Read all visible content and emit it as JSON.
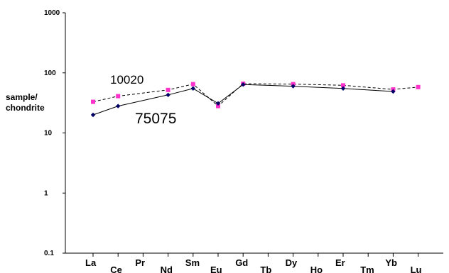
{
  "chart_data": {
    "type": "line",
    "yscale": "log",
    "ylim": [
      0.1,
      1000
    ],
    "yticks": [
      "1000",
      "100",
      "10",
      "1",
      "0.1"
    ],
    "ylabel_lines": [
      "sample/",
      "chondrite"
    ],
    "xlabel": "",
    "grid": false,
    "legend": "none",
    "categories": [
      "La",
      "Ce",
      "Pr",
      "Nd",
      "Sm",
      "Eu",
      "Gd",
      "Tb",
      "Dy",
      "Ho",
      "Er",
      "Tm",
      "Yb",
      "Lu"
    ],
    "series": [
      {
        "name": "10020",
        "style": "dashed",
        "marker": "square",
        "color": "#ff33cc",
        "points": [
          {
            "cat": "La",
            "value": 33
          },
          {
            "cat": "Ce",
            "value": 41
          },
          {
            "cat": "Nd",
            "value": 52
          },
          {
            "cat": "Sm",
            "value": 65
          },
          {
            "cat": "Eu",
            "value": 28
          },
          {
            "cat": "Gd",
            "value": 66
          },
          {
            "cat": "Dy",
            "value": 65
          },
          {
            "cat": "Er",
            "value": 62
          },
          {
            "cat": "Yb",
            "value": 53
          },
          {
            "cat": "Lu",
            "value": 58
          }
        ]
      },
      {
        "name": "75075",
        "style": "solid",
        "marker": "diamond",
        "color": "#000066",
        "points": [
          {
            "cat": "La",
            "value": 20
          },
          {
            "cat": "Ce",
            "value": 28
          },
          {
            "cat": "Nd",
            "value": 43
          },
          {
            "cat": "Sm",
            "value": 55
          },
          {
            "cat": "Eu",
            "value": 31
          },
          {
            "cat": "Gd",
            "value": 64
          },
          {
            "cat": "Dy",
            "value": 60
          },
          {
            "cat": "Er",
            "value": 55
          },
          {
            "cat": "Yb",
            "value": 49
          }
        ]
      }
    ],
    "annotations": [
      "10020",
      "75075"
    ]
  }
}
